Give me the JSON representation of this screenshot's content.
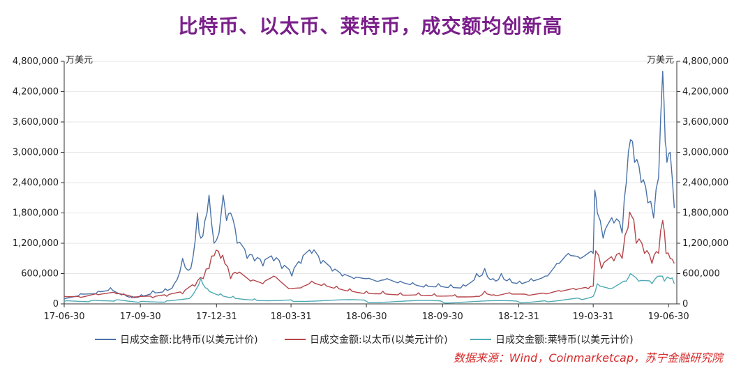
{
  "title": "比特币、以太币、莱特币，成交额均创新高",
  "source": "数据来源：Wind，Coinmarketcap，苏宁金融研究院",
  "chart_data": {
    "type": "line",
    "y_unit_left": "万美元",
    "y_unit_right": "万美元",
    "ylim": [
      0,
      4800000
    ],
    "y_ticks": [
      "0",
      "600,000",
      "1,200,000",
      "1,800,000",
      "2,400,000",
      "3,000,000",
      "3,600,000",
      "4,200,000",
      "4,800,000"
    ],
    "x_ticks": [
      "17-06-30",
      "17-09-30",
      "17-12-31",
      "18-03-31",
      "18-06-30",
      "18-09-30",
      "18-12-31",
      "19-03-31",
      "19-06-30"
    ],
    "x_tick_dates": [
      "2017-06-30",
      "2017-09-30",
      "2017-12-31",
      "2018-03-31",
      "2018-06-30",
      "2018-09-30",
      "2018-12-31",
      "2019-03-31",
      "2019-06-30"
    ],
    "x_range": [
      "2017-06-30",
      "2019-07-10"
    ],
    "grid": "horizontal",
    "legend_position": "bottom",
    "series": [
      {
        "name": "日成交金额:比特币(以美元计价)",
        "color": "#4a72a8",
        "x": [
          "2017-06-30",
          "2017-07-20",
          "2017-08-10",
          "2017-08-25",
          "2017-09-10",
          "2017-09-20",
          "2017-10-01",
          "2017-10-15",
          "2017-10-30",
          "2017-11-10",
          "2017-11-20",
          "2017-11-30",
          "2017-12-08",
          "2017-12-12",
          "2017-12-17",
          "2017-12-22",
          "2017-12-28",
          "2018-01-03",
          "2018-01-08",
          "2018-01-12",
          "2018-01-17",
          "2018-01-25",
          "2018-02-06",
          "2018-02-15",
          "2018-02-25",
          "2018-03-10",
          "2018-03-20",
          "2018-04-01",
          "2018-04-12",
          "2018-04-25",
          "2018-05-06",
          "2018-05-20",
          "2018-06-01",
          "2018-06-15",
          "2018-06-30",
          "2018-07-15",
          "2018-07-25",
          "2018-08-10",
          "2018-08-25",
          "2018-09-10",
          "2018-09-25",
          "2018-10-10",
          "2018-10-25",
          "2018-11-10",
          "2018-11-20",
          "2018-11-30",
          "2018-12-10",
          "2018-12-20",
          "2019-01-01",
          "2019-01-15",
          "2019-02-01",
          "2019-02-15",
          "2019-03-01",
          "2019-03-15",
          "2019-03-31",
          "2019-04-02",
          "2019-04-05",
          "2019-04-12",
          "2019-04-25",
          "2019-05-05",
          "2019-05-10",
          "2019-05-15",
          "2019-05-20",
          "2019-05-28",
          "2019-06-05",
          "2019-06-12",
          "2019-06-18",
          "2019-06-23",
          "2019-06-26",
          "2019-06-28",
          "2019-07-02",
          "2019-07-07"
        ],
        "y": [
          100000,
          200000,
          250000,
          320000,
          200000,
          150000,
          180000,
          260000,
          300000,
          400000,
          900000,
          700000,
          1800000,
          1300000,
          1650000,
          2150000,
          1200000,
          1400000,
          2150000,
          1650000,
          1800000,
          1200000,
          900000,
          850000,
          750000,
          850000,
          700000,
          550000,
          800000,
          1000000,
          800000,
          650000,
          550000,
          500000,
          500000,
          450000,
          500000,
          450000,
          420000,
          380000,
          400000,
          380000,
          380000,
          600000,
          700000,
          500000,
          600000,
          500000,
          450000,
          500000,
          550000,
          800000,
          1000000,
          900000,
          1000000,
          2250000,
          1800000,
          1300000,
          1600000,
          1400000,
          2400000,
          3250000,
          2800000,
          2400000,
          2000000,
          1700000,
          2500000,
          4600000,
          3200000,
          2800000,
          3000000,
          1900000
        ]
      },
      {
        "name": "日成交金额:以太币(以美元计价)",
        "color": "#b5454a",
        "x": [
          "2017-06-30",
          "2017-07-20",
          "2017-08-10",
          "2017-09-01",
          "2017-09-20",
          "2017-10-15",
          "2017-11-01",
          "2017-11-20",
          "2017-12-05",
          "2017-12-15",
          "2017-12-22",
          "2017-12-28",
          "2018-01-05",
          "2018-01-10",
          "2018-01-17",
          "2018-01-25",
          "2018-02-10",
          "2018-02-25",
          "2018-03-10",
          "2018-03-31",
          "2018-04-15",
          "2018-04-25",
          "2018-05-10",
          "2018-05-25",
          "2018-06-10",
          "2018-06-30",
          "2018-07-20",
          "2018-08-10",
          "2018-09-01",
          "2018-09-20",
          "2018-10-15",
          "2018-11-10",
          "2018-11-20",
          "2018-12-01",
          "2018-12-20",
          "2019-01-10",
          "2019-02-01",
          "2019-02-20",
          "2019-03-10",
          "2019-03-25",
          "2019-03-31",
          "2019-04-03",
          "2019-04-10",
          "2019-04-25",
          "2019-05-05",
          "2019-05-12",
          "2019-05-16",
          "2019-05-22",
          "2019-06-01",
          "2019-06-10",
          "2019-06-18",
          "2019-06-23",
          "2019-06-27",
          "2019-07-02",
          "2019-07-07"
        ],
        "y": [
          150000,
          130000,
          180000,
          200000,
          120000,
          120000,
          150000,
          200000,
          350000,
          500000,
          700000,
          950000,
          900000,
          800000,
          500000,
          600000,
          450000,
          400000,
          550000,
          300000,
          350000,
          450000,
          400000,
          350000,
          300000,
          250000,
          250000,
          220000,
          220000,
          200000,
          180000,
          150000,
          250000,
          180000,
          220000,
          180000,
          200000,
          250000,
          280000,
          300000,
          350000,
          1050000,
          700000,
          850000,
          900000,
          1500000,
          1750000,
          1200000,
          1000000,
          800000,
          1000000,
          1650000,
          1000000,
          900000,
          800000
        ]
      },
      {
        "name": "日成交金额:莱特币(以美元计价)",
        "color": "#4faab3",
        "x": [
          "2017-06-30",
          "2017-08-01",
          "2017-09-01",
          "2017-10-01",
          "2017-11-01",
          "2017-12-01",
          "2017-12-12",
          "2017-12-20",
          "2018-01-05",
          "2018-01-20",
          "2018-02-15",
          "2018-03-31",
          "2018-06-30",
          "2018-09-30",
          "2018-12-31",
          "2019-02-01",
          "2019-03-15",
          "2019-03-31",
          "2019-04-05",
          "2019-04-20",
          "2019-05-10",
          "2019-05-15",
          "2019-05-25",
          "2019-06-10",
          "2019-06-20",
          "2019-06-25",
          "2019-07-02",
          "2019-07-07"
        ],
        "y": [
          50000,
          60000,
          80000,
          50000,
          60000,
          150000,
          500000,
          300000,
          200000,
          150000,
          100000,
          80000,
          50000,
          40000,
          40000,
          60000,
          100000,
          150000,
          400000,
          300000,
          450000,
          600000,
          450000,
          400000,
          550000,
          450000,
          500000,
          400000
        ]
      }
    ]
  }
}
